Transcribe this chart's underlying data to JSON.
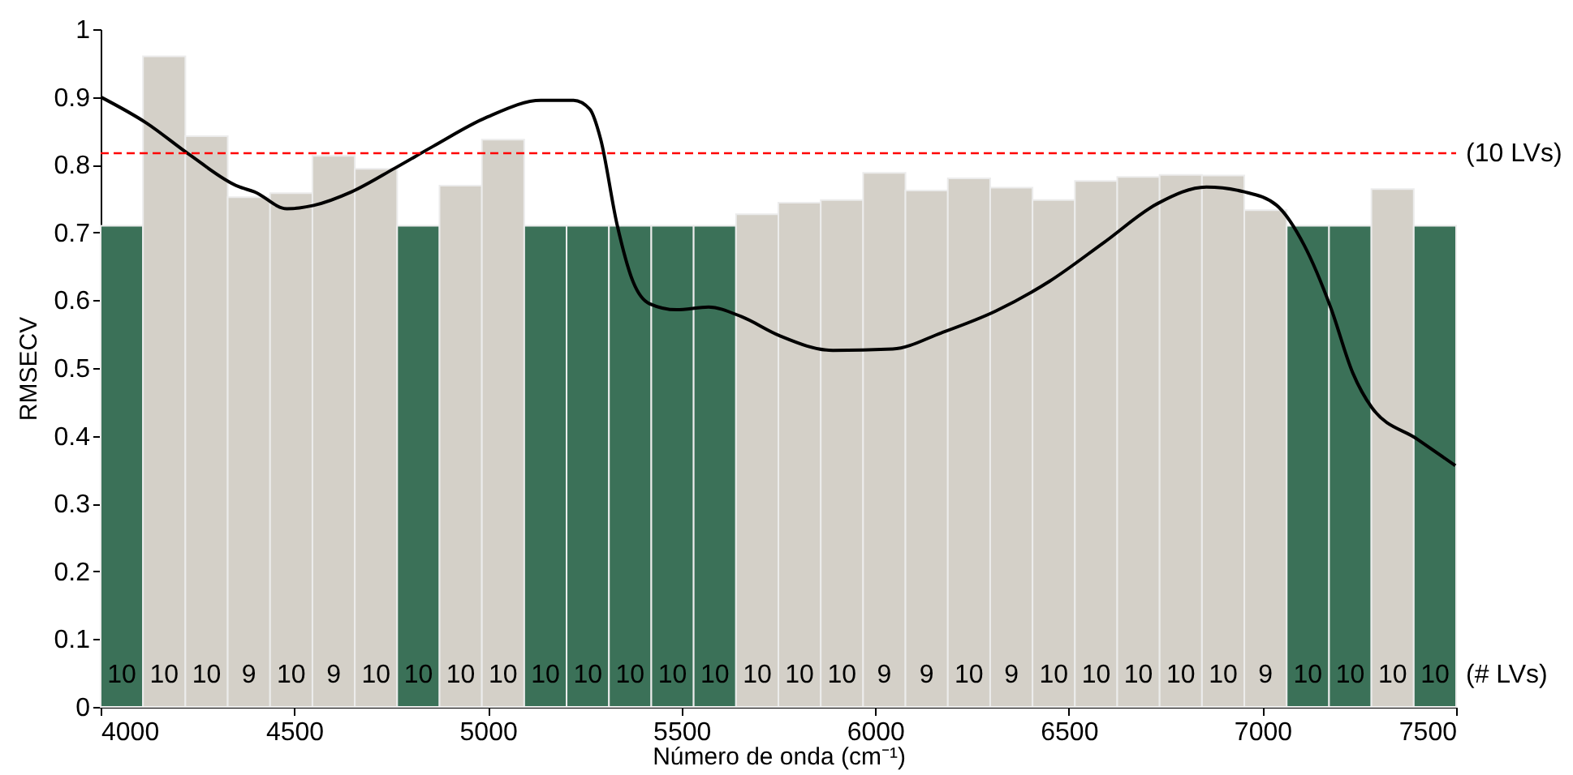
{
  "chart_data": {
    "type": "histogram",
    "xlabel": "Número de onda (cm⁻¹)",
    "ylabel": "RMSECV",
    "xlim": [
      4000,
      7500
    ],
    "xticks": [
      4000,
      4500,
      5000,
      5500,
      6000,
      6500,
      7000,
      7500
    ],
    "ylim": [
      0,
      1
    ],
    "yticks": [
      0,
      0.1,
      0.2,
      0.3,
      0.4,
      0.5,
      0.6,
      0.7,
      0.8,
      0.9,
      1
    ],
    "grid": false,
    "series": [
      {
        "bins": [
          4000,
          4109.375,
          4218.75,
          4328.125,
          4437.5,
          4546.875,
          4656.25,
          4765.625,
          4875,
          4984.375,
          5093.75,
          5203.125,
          5312.5,
          5421.875,
          5531.25,
          5640.625,
          5750,
          5859.375,
          5968.75,
          6078.125,
          6187.5,
          6296.875,
          6406.25,
          6515.625,
          6625,
          6734.375,
          6843.75,
          6953.125,
          7062.5,
          7171.875,
          7281.25,
          7390.625,
          7500
        ],
        "values": [
          0.71,
          0.96,
          0.842,
          0.752,
          0.758,
          0.813,
          0.794,
          0.71,
          0.769,
          0.837,
          0.71,
          0.71,
          0.71,
          0.71,
          0.71,
          0.727,
          0.744,
          0.748,
          0.788,
          0.762,
          0.78,
          0.766,
          0.748,
          0.776,
          0.782,
          0.785,
          0.784,
          0.733,
          0.71,
          0.71,
          0.764,
          0.71
        ],
        "colors": [
          "#3b7158",
          "#d4d0c8",
          "#d4d0c8",
          "#d4d0c8",
          "#d4d0c8",
          "#d4d0c8",
          "#d4d0c8",
          "#3b7158",
          "#d4d0c8",
          "#d4d0c8",
          "#3b7158",
          "#3b7158",
          "#3b7158",
          "#3b7158",
          "#3b7158",
          "#d4d0c8",
          "#d4d0c8",
          "#d4d0c8",
          "#d4d0c8",
          "#d4d0c8",
          "#d4d0c8",
          "#d4d0c8",
          "#d4d0c8",
          "#d4d0c8",
          "#d4d0c8",
          "#d4d0c8",
          "#d4d0c8",
          "#d4d0c8",
          "#3b7158",
          "#3b7158",
          "#d4d0c8",
          "#3b7158"
        ]
      },
      {
        "type": "line",
        "color": "#000000",
        "x": [
          4000,
          4117,
          4229,
          4355,
          4397,
          4481,
          4550,
          4648,
          4760,
          4858,
          4997,
          5137,
          5221,
          5263,
          5291,
          5333,
          5375,
          5417,
          5487,
          5570,
          5654,
          5752,
          5891,
          6045,
          6171,
          6311,
          6450,
          6590,
          6730,
          6855,
          6953,
          7037,
          7107,
          7177,
          7233,
          7282,
          7400,
          7498
        ],
        "values": [
          0.9,
          0.862,
          0.815,
          0.768,
          0.76,
          0.735,
          0.74,
          0.76,
          0.795,
          0.827,
          0.87,
          0.895,
          0.895,
          0.882,
          0.838,
          0.713,
          0.627,
          0.595,
          0.586,
          0.59,
          0.576,
          0.548,
          0.526,
          0.528,
          0.552,
          0.584,
          0.628,
          0.685,
          0.743,
          0.767,
          0.76,
          0.74,
          0.682,
          0.588,
          0.493,
          0.442,
          0.395,
          0.356
        ]
      }
    ],
    "ref_lines": [
      {
        "axis": "y",
        "value": 0.817,
        "label": "(10 LVs)",
        "color": "#ff0000",
        "line_style": "dashed"
      }
    ],
    "annotations": [
      "10",
      "10",
      "10",
      "9",
      "10",
      "9",
      "10",
      "10",
      "10",
      "10",
      "10",
      "10",
      "10",
      "10",
      "10",
      "10",
      "10",
      "10",
      "9",
      "9",
      "10",
      "9",
      "10",
      "10",
      "10",
      "10",
      "10",
      "9",
      "10",
      "10",
      "10",
      "10",
      "(# LVs)"
    ]
  }
}
